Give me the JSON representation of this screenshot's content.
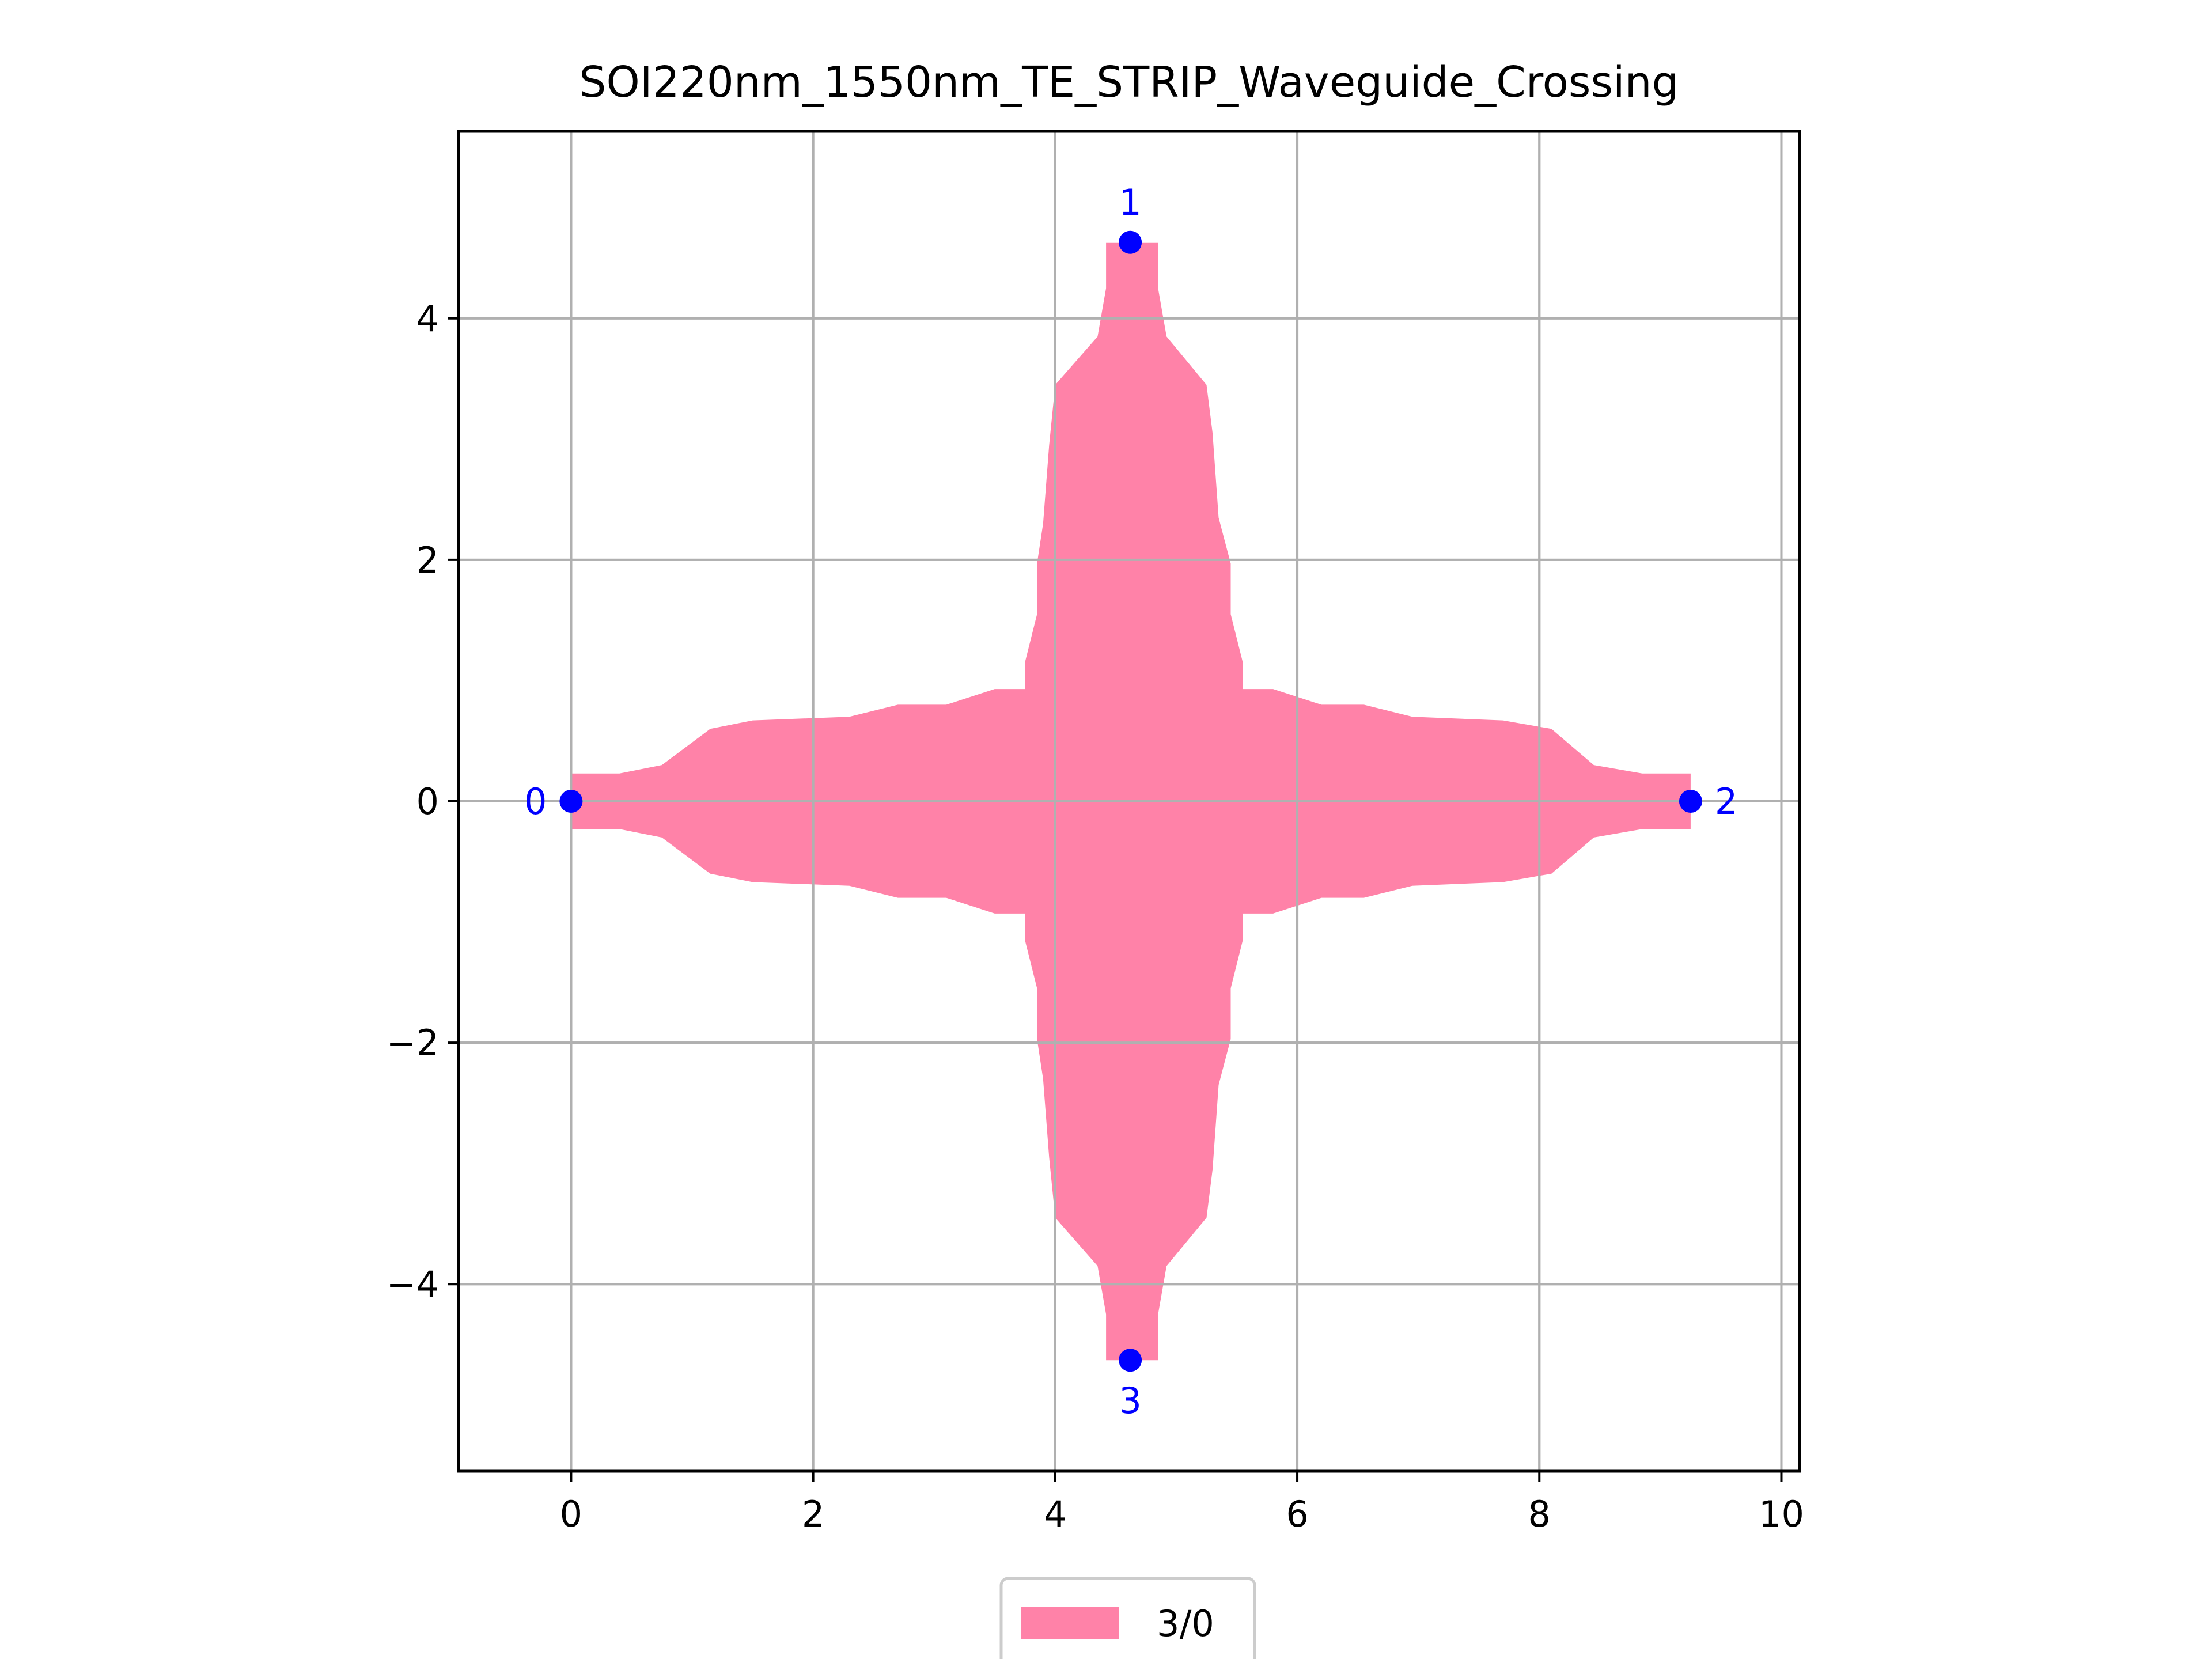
{
  "chart_data": {
    "type": "area",
    "title": "SOI220nm_1550nm_TE_STRIP_Waveguide_Crossing",
    "xlabel": "",
    "ylabel": "",
    "xlim": [
      -0.93,
      10.15
    ],
    "ylim": [
      -5.55,
      5.55
    ],
    "xticks": [
      0,
      2,
      4,
      6,
      8,
      10
    ],
    "yticks": [
      -4,
      -2,
      0,
      2,
      4
    ],
    "xtick_labels": [
      "0",
      "2",
      "4",
      "6",
      "8",
      "10"
    ],
    "ytick_labels": [
      "−4",
      "−2",
      "0",
      "2",
      "4"
    ],
    "grid": true,
    "legend_position": "bottom-center",
    "colors": {
      "fill": "#ff82a8",
      "port": "#0000ff",
      "grid": "#b0b0b0",
      "axis": "#000000"
    },
    "series": [
      {
        "name": "3/0",
        "polygon": [
          [
            0,
            0.23
          ],
          [
            0.4,
            0.23
          ],
          [
            0.75,
            0.3
          ],
          [
            1.15,
            0.6
          ],
          [
            1.5,
            0.67
          ],
          [
            2.3,
            0.7
          ],
          [
            2.7,
            0.8
          ],
          [
            3.1,
            0.8
          ],
          [
            3.5,
            0.93
          ],
          [
            3.75,
            0.93
          ],
          [
            3.75,
            1.15
          ],
          [
            3.85,
            1.55
          ],
          [
            3.85,
            1.97
          ],
          [
            3.9,
            2.3
          ],
          [
            3.95,
            2.95
          ],
          [
            4.0,
            3.45
          ],
          [
            4.35,
            3.85
          ],
          [
            4.42,
            4.25
          ],
          [
            4.42,
            4.63
          ],
          [
            4.85,
            4.63
          ],
          [
            4.85,
            4.25
          ],
          [
            4.92,
            3.85
          ],
          [
            5.25,
            3.45
          ],
          [
            5.3,
            3.05
          ],
          [
            5.35,
            2.35
          ],
          [
            5.45,
            1.97
          ],
          [
            5.45,
            1.55
          ],
          [
            5.55,
            1.15
          ],
          [
            5.55,
            0.93
          ],
          [
            5.8,
            0.93
          ],
          [
            6.2,
            0.8
          ],
          [
            6.55,
            0.8
          ],
          [
            6.95,
            0.7
          ],
          [
            7.7,
            0.67
          ],
          [
            8.1,
            0.6
          ],
          [
            8.45,
            0.3
          ],
          [
            8.85,
            0.23
          ],
          [
            9.25,
            0.23
          ],
          [
            9.25,
            -0.23
          ],
          [
            8.85,
            -0.23
          ],
          [
            8.45,
            -0.3
          ],
          [
            8.1,
            -0.6
          ],
          [
            7.7,
            -0.67
          ],
          [
            6.95,
            -0.7
          ],
          [
            6.55,
            -0.8
          ],
          [
            6.2,
            -0.8
          ],
          [
            5.8,
            -0.93
          ],
          [
            5.55,
            -0.93
          ],
          [
            5.55,
            -1.15
          ],
          [
            5.45,
            -1.55
          ],
          [
            5.45,
            -1.97
          ],
          [
            5.35,
            -2.35
          ],
          [
            5.3,
            -3.05
          ],
          [
            5.25,
            -3.45
          ],
          [
            4.92,
            -3.85
          ],
          [
            4.85,
            -4.25
          ],
          [
            4.85,
            -4.63
          ],
          [
            4.42,
            -4.63
          ],
          [
            4.42,
            -4.25
          ],
          [
            4.35,
            -3.85
          ],
          [
            4.0,
            -3.45
          ],
          [
            3.95,
            -2.95
          ],
          [
            3.9,
            -2.3
          ],
          [
            3.85,
            -1.97
          ],
          [
            3.85,
            -1.55
          ],
          [
            3.75,
            -1.15
          ],
          [
            3.75,
            -0.93
          ],
          [
            3.5,
            -0.93
          ],
          [
            3.1,
            -0.8
          ],
          [
            2.7,
            -0.8
          ],
          [
            2.3,
            -0.7
          ],
          [
            1.5,
            -0.67
          ],
          [
            1.15,
            -0.6
          ],
          [
            0.75,
            -0.3
          ],
          [
            0.4,
            -0.23
          ],
          [
            0,
            -0.23
          ]
        ]
      }
    ],
    "ports": [
      {
        "label": "0",
        "x": 0,
        "y": 0,
        "label_side": "left"
      },
      {
        "label": "1",
        "x": 4.62,
        "y": 4.63,
        "label_side": "top"
      },
      {
        "label": "2",
        "x": 9.25,
        "y": 0,
        "label_side": "right"
      },
      {
        "label": "3",
        "x": 4.62,
        "y": -4.63,
        "label_side": "bottom"
      }
    ],
    "legend": [
      {
        "label": "3/0"
      }
    ]
  }
}
